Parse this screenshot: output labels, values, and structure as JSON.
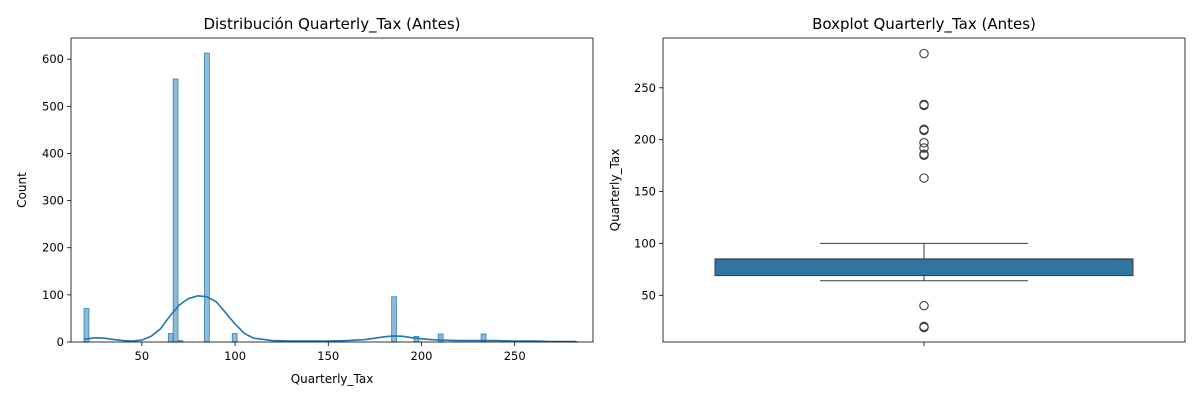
{
  "chart_data": [
    {
      "type": "histogram",
      "title": "Distribución Quarterly_Tax (Antes)",
      "xlabel": "Quarterly_Tax",
      "ylabel": "Count",
      "xlim": [
        12,
        292
      ],
      "ylim": [
        0,
        645
      ],
      "xticks": [
        50,
        100,
        150,
        200,
        250
      ],
      "yticks": [
        0,
        100,
        200,
        300,
        400,
        500,
        600
      ],
      "bar_color": "#1f77b4",
      "kde_color": "#1f77b4",
      "grid": false,
      "bins": [
        {
          "x0": 19,
          "x1": 21.6,
          "count": 71
        },
        {
          "x0": 64.2,
          "x1": 66.8,
          "count": 18
        },
        {
          "x0": 66.8,
          "x1": 69.4,
          "count": 558
        },
        {
          "x0": 69.4,
          "x1": 72.0,
          "count": 3
        },
        {
          "x0": 83.6,
          "x1": 86.2,
          "count": 613
        },
        {
          "x0": 98.5,
          "x1": 101.1,
          "count": 18
        },
        {
          "x0": 184.0,
          "x1": 186.6,
          "count": 96
        },
        {
          "x0": 196.0,
          "x1": 198.6,
          "count": 12
        },
        {
          "x0": 209.0,
          "x1": 211.6,
          "count": 17
        },
        {
          "x0": 232.0,
          "x1": 234.6,
          "count": 17
        },
        {
          "x0": 281.0,
          "x1": 283.6,
          "count": 1
        }
      ],
      "kde": {
        "x": [
          19,
          25,
          30,
          35,
          40,
          45,
          50,
          55,
          60,
          65,
          70,
          75,
          80,
          85,
          90,
          95,
          100,
          105,
          110,
          120,
          130,
          140,
          150,
          160,
          170,
          175,
          180,
          185,
          190,
          195,
          200,
          205,
          210,
          220,
          230,
          240,
          250,
          260,
          270,
          283
        ],
        "y": [
          6,
          9,
          8,
          5,
          3,
          2,
          4,
          12,
          28,
          55,
          78,
          92,
          98,
          96,
          85,
          62,
          38,
          18,
          8,
          3,
          2,
          2,
          2,
          3,
          5,
          8,
          11,
          13,
          12,
          9,
          7,
          5,
          4,
          3,
          3,
          3,
          2,
          2,
          1,
          1
        ]
      }
    },
    {
      "type": "box",
      "title": "Boxplot Quarterly_Tax (Antes)",
      "xlabel": "",
      "ylabel": "Quarterly_Tax",
      "ylim": [
        5,
        298
      ],
      "yticks": [
        50,
        100,
        150,
        200,
        250
      ],
      "box_color": "#3274a1",
      "q1": 69,
      "median": 85,
      "q3": 85,
      "whisker_low": 64,
      "whisker_high": 100,
      "outliers": [
        19,
        20,
        40,
        163,
        185,
        186,
        192,
        197,
        209,
        210,
        233,
        234,
        283
      ]
    }
  ]
}
